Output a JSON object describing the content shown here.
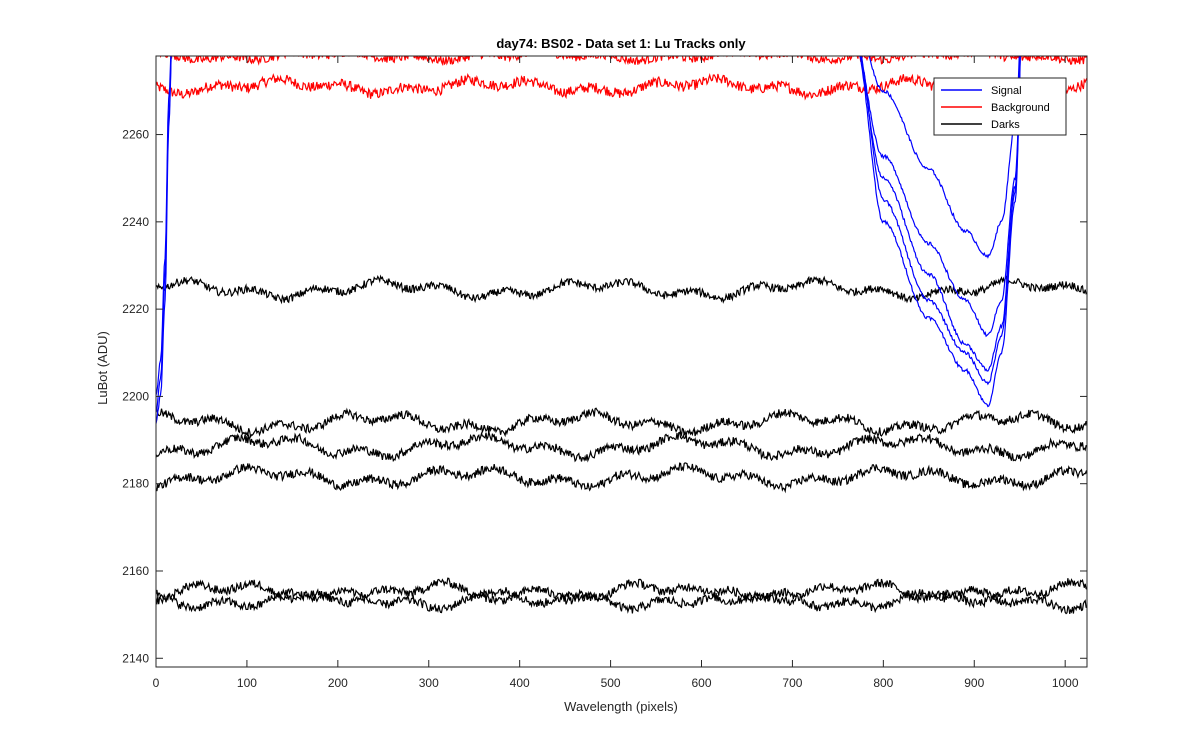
{
  "chart_data": {
    "type": "line",
    "title": "day74: BS02 - Data set 1: Lu Tracks only",
    "xlabel": "Wavelength (pixels)",
    "ylabel": "LuBot (ADU)",
    "xlim": [
      0,
      1024
    ],
    "ylim": [
      2138,
      2278
    ],
    "xticks": [
      0,
      100,
      200,
      300,
      400,
      500,
      600,
      700,
      800,
      900,
      1000
    ],
    "yticks": [
      2140,
      2160,
      2180,
      2200,
      2220,
      2240,
      2260
    ],
    "grid": false,
    "legend_location": "top-right",
    "legend": [
      {
        "label": "Signal",
        "color": "#0000ff"
      },
      {
        "label": "Background",
        "color": "#ff0000"
      },
      {
        "label": "Darks",
        "color": "#000000"
      }
    ],
    "series_groups": [
      {
        "legend": "Background",
        "color": "#ff0000",
        "traces": [
          {
            "base": 2271,
            "noise": 1.2,
            "wave": [
              1.0,
              0.8
            ],
            "x": [
              0,
              1024
            ]
          },
          {
            "base": 2278,
            "noise": 1.0,
            "wave": [
              0.6,
              0.5
            ],
            "x": [
              0,
              1024
            ]
          }
        ]
      },
      {
        "legend": "Darks",
        "color": "#000000",
        "traces": [
          {
            "base": 2224.5,
            "noise": 0.9,
            "wave": [
              1.3,
              0.9
            ],
            "x": [
              0,
              1024
            ]
          },
          {
            "base": 2194,
            "noise": 1.0,
            "wave": [
              1.4,
              1.0
            ],
            "x": [
              0,
              1024
            ]
          },
          {
            "base": 2188.5,
            "noise": 1.0,
            "wave": [
              1.6,
              1.0
            ],
            "x": [
              0,
              1024
            ]
          },
          {
            "base": 2181.5,
            "noise": 1.0,
            "wave": [
              1.4,
              1.0
            ],
            "x": [
              0,
              1024
            ]
          },
          {
            "base": 2155,
            "noise": 1.0,
            "wave": [
              1.5,
              1.0
            ],
            "x": [
              0,
              1024
            ]
          },
          {
            "base": 2153.5,
            "noise": 1.0,
            "wave": [
              1.4,
              1.0
            ],
            "x": [
              0,
              1024
            ]
          }
        ]
      },
      {
        "legend": "Signal",
        "color": "#0000ff",
        "traces": [
          {
            "x": [
              0,
              5,
              10,
              14,
              20
            ],
            "y": [
              2200,
              2208,
              2232,
              2268,
              2300
            ]
          },
          {
            "x": [
              0,
              5,
              10,
              14,
              20
            ],
            "y": [
              2196,
              2204,
              2228,
              2264,
              2300
            ]
          },
          {
            "x": [
              0,
              5,
              10,
              14,
              20
            ],
            "y": [
              2194,
              2200,
              2222,
              2262,
              2300
            ]
          },
          {
            "x": [
              755,
              800,
              850,
              890,
              915,
              930,
              945,
              955
            ],
            "y": [
              2300,
              2270,
              2252,
              2238,
              2232,
              2240,
              2262,
              2300
            ]
          },
          {
            "x": [
              760,
              800,
              850,
              890,
              915,
              930,
              945,
              955
            ],
            "y": [
              2290,
              2255,
              2235,
              2222,
              2214,
              2222,
              2250,
              2300
            ]
          },
          {
            "x": [
              765,
              800,
              850,
              890,
              915,
              930,
              945,
              955
            ],
            "y": [
              2285,
              2250,
              2228,
              2212,
              2206,
              2216,
              2248,
              2300
            ]
          },
          {
            "x": [
              770,
              800,
              850,
              890,
              915,
              930,
              945,
              955
            ],
            "y": [
              2282,
              2245,
              2222,
              2210,
              2203,
              2214,
              2247,
              2300
            ]
          },
          {
            "x": [
              770,
              800,
              850,
              890,
              915,
              930,
              945,
              955
            ],
            "y": [
              2280,
              2240,
              2218,
              2206,
              2198,
              2210,
              2245,
              2300
            ]
          }
        ]
      }
    ]
  }
}
